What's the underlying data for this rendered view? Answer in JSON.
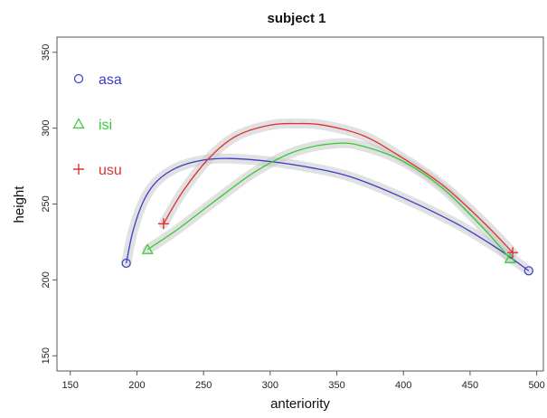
{
  "chart_data": {
    "type": "line",
    "title": "subject 1",
    "xlabel": "anteriority",
    "ylabel": "height",
    "xlim": [
      140,
      505
    ],
    "ylim": [
      140,
      360
    ],
    "xticks": [
      150,
      200,
      250,
      300,
      350,
      400,
      450,
      500
    ],
    "yticks": [
      150,
      200,
      250,
      300,
      350
    ],
    "grid": false,
    "legend_position": "top-left",
    "series": [
      {
        "name": "asa",
        "color": "#3b3bcc",
        "marker": "circle",
        "endpoints": [
          [
            192,
            211
          ],
          [
            494,
            206
          ]
        ],
        "curve": [
          [
            192,
            211
          ],
          [
            197,
            232
          ],
          [
            205,
            252
          ],
          [
            215,
            265
          ],
          [
            230,
            274
          ],
          [
            250,
            279
          ],
          [
            270,
            280
          ],
          [
            300,
            278
          ],
          [
            330,
            274
          ],
          [
            360,
            268
          ],
          [
            400,
            254
          ],
          [
            440,
            237
          ],
          [
            470,
            221
          ],
          [
            494,
            206
          ]
        ]
      },
      {
        "name": "isi",
        "color": "#33cc33",
        "marker": "triangle",
        "endpoints": [
          [
            208,
            220
          ],
          [
            480,
            214
          ]
        ],
        "curve": [
          [
            208,
            220
          ],
          [
            230,
            233
          ],
          [
            260,
            253
          ],
          [
            290,
            272
          ],
          [
            320,
            285
          ],
          [
            350,
            290
          ],
          [
            370,
            288
          ],
          [
            400,
            278
          ],
          [
            430,
            260
          ],
          [
            460,
            234
          ],
          [
            480,
            214
          ]
        ]
      },
      {
        "name": "usu",
        "color": "#dd3333",
        "marker": "plus",
        "endpoints": [
          [
            220,
            237
          ],
          [
            482,
            218
          ]
        ],
        "curve": [
          [
            220,
            237
          ],
          [
            235,
            259
          ],
          [
            255,
            281
          ],
          [
            275,
            295
          ],
          [
            300,
            302
          ],
          [
            320,
            303
          ],
          [
            340,
            302
          ],
          [
            370,
            295
          ],
          [
            400,
            280
          ],
          [
            430,
            262
          ],
          [
            460,
            238
          ],
          [
            482,
            218
          ]
        ]
      }
    ]
  }
}
